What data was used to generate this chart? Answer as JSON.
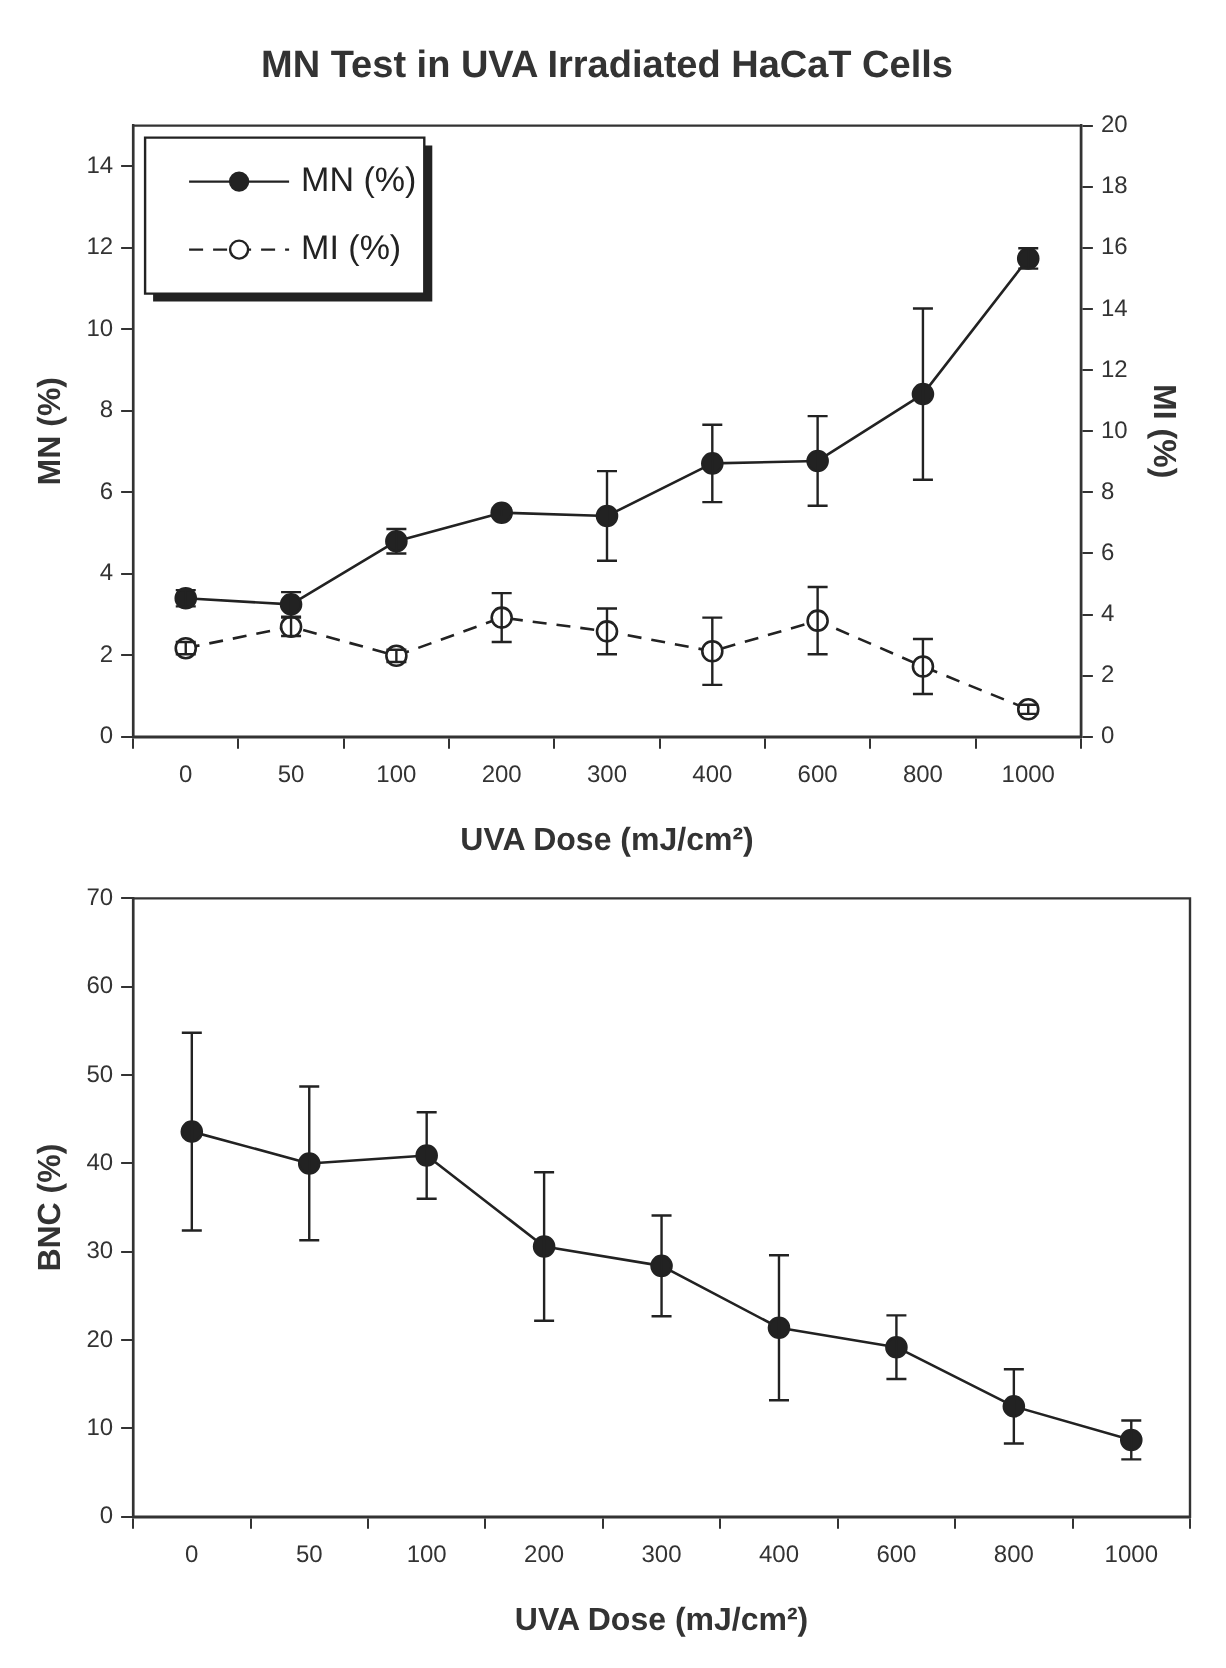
{
  "chart_data": [
    {
      "type": "line",
      "title": "MN Test in UVA Irradiated HaCaT Cells",
      "xlabel": "UVA Dose (mJ/cm²)",
      "ylabel": "MN (%)",
      "y2label": "MI (%)",
      "categories": [
        "0",
        "50",
        "100",
        "200",
        "300",
        "400",
        "600",
        "800",
        "1000"
      ],
      "series": [
        {
          "name": "MN (%)",
          "color": "#222222",
          "line_style": "solid",
          "values": [
            3.4,
            3.25,
            4.8,
            5.5,
            5.42,
            6.71,
            6.77,
            8.41,
            11.74
          ],
          "errors": [
            0.2,
            0.3,
            0.3,
            0.1,
            1.1,
            0.95,
            1.1,
            2.1,
            0.25
          ]
        },
        {
          "name": "MI (%)",
          "color": "#222222",
          "line_style": "dashed",
          "axis": "y2",
          "values": [
            2.9,
            3.6,
            2.65,
            3.9,
            3.45,
            2.8,
            3.8,
            2.3,
            0.9
          ],
          "errors": [
            0.2,
            0.3,
            0.2,
            0.8,
            0.75,
            1.1,
            1.1,
            0.9,
            0.15
          ]
        }
      ],
      "ylim": [
        0,
        15
      ],
      "yticks": [
        0,
        2,
        4,
        6,
        8,
        10,
        12,
        14
      ],
      "y2lim": [
        0,
        20
      ],
      "y2ticks": [
        0,
        2,
        4,
        6,
        8,
        10,
        12,
        14,
        16,
        18,
        20
      ],
      "marker": "circle",
      "legend": "top left",
      "grid": false
    },
    {
      "type": "line",
      "xlabel": "UVA Dose (mJ/cm²)",
      "ylabel": "BNC (%)",
      "categories": [
        "0",
        "50",
        "100",
        "200",
        "300",
        "400",
        "600",
        "800",
        "1000"
      ],
      "series": [
        {
          "color": "#222222",
          "line_style": "solid",
          "values": [
            43.6,
            40,
            40.9,
            30.6,
            28.4,
            21.4,
            19.2,
            12.5,
            8.7
          ],
          "errors": [
            11.2,
            8.7,
            4.9,
            8.4,
            5.7,
            8.2,
            3.6,
            4.2,
            2.2
          ]
        }
      ],
      "ylim": [
        0,
        70
      ],
      "yticks": [
        0,
        10,
        20,
        30,
        40,
        50,
        60,
        70
      ],
      "marker": "circle",
      "legend": false,
      "grid": false
    }
  ]
}
